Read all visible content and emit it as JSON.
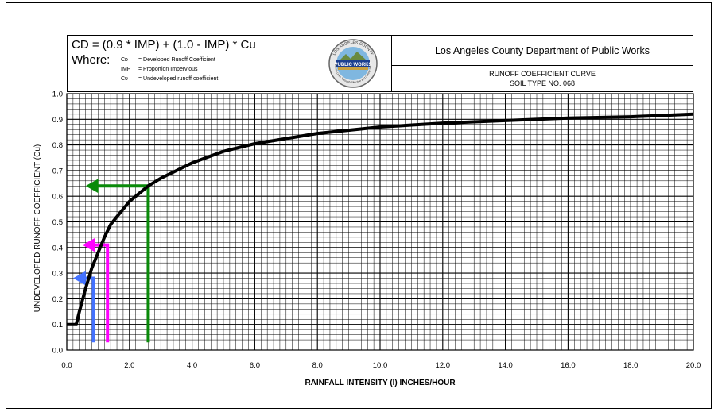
{
  "header": {
    "formula": "CD = (0.9 * IMP) + (1.0 - IMP) * Cu",
    "where_label": "Where:",
    "definitions": [
      {
        "symbol": "Cᴅ",
        "text": "= Developed Runoff Coefficient"
      },
      {
        "symbol": "IMP",
        "text": "= Proportion Impervious"
      },
      {
        "symbol": "Cᴜ",
        "text": "= Undeveloped runoff coefficient"
      }
    ],
    "logo": {
      "top_text": "LOS ANGELES COUNTY",
      "band_text": "PUBLIC WORKS",
      "bottom_text": "To Enrich Lives Through Effective and Caring Service"
    },
    "agency": "Los Angeles County Department of Public Works",
    "curve_title_line1": "RUNOFF COEFFICIENT CURVE",
    "curve_title_line2": "SOIL TYPE NO. 068"
  },
  "chart_data": {
    "type": "line",
    "xlabel": "RAINFALL INTENSITY (I) INCHES/HOUR",
    "ylabel": "UNDEVELOPED RUNOFF COEFFICIENT (Cu)",
    "xlim": [
      0,
      20
    ],
    "ylim": [
      0,
      1.0
    ],
    "x_ticks": [
      "0.0",
      "2.0",
      "4.0",
      "6.0",
      "8.0",
      "10.0",
      "12.0",
      "14.0",
      "16.0",
      "18.0",
      "20.0"
    ],
    "y_ticks": [
      "0.0",
      "0.1",
      "0.2",
      "0.3",
      "0.4",
      "0.5",
      "0.6",
      "0.7",
      "0.8",
      "0.9",
      "1.0"
    ],
    "grid": "major and minor",
    "curve": {
      "x": [
        0,
        0.3,
        0.4,
        0.6,
        0.8,
        1.0,
        1.2,
        1.4,
        1.6,
        2.0,
        2.6,
        3.0,
        4.0,
        5.0,
        6.0,
        8.0,
        10.0,
        12.0,
        14.0,
        16.0,
        18.0,
        20.0
      ],
      "y": [
        0.1,
        0.1,
        0.15,
        0.24,
        0.32,
        0.38,
        0.44,
        0.49,
        0.52,
        0.58,
        0.64,
        0.67,
        0.73,
        0.775,
        0.805,
        0.845,
        0.87,
        0.885,
        0.895,
        0.905,
        0.91,
        0.92
      ],
      "color": "#000000"
    },
    "annotations": [
      {
        "name": "green-arrow",
        "color": "#0a8a0a",
        "x": 2.6,
        "y": 0.64
      },
      {
        "name": "magenta-arrow",
        "color": "#ff00ff",
        "x": 1.3,
        "y": 0.41
      },
      {
        "name": "blue-arrow",
        "color": "#4472ff",
        "x": 0.85,
        "y": 0.28
      }
    ]
  }
}
